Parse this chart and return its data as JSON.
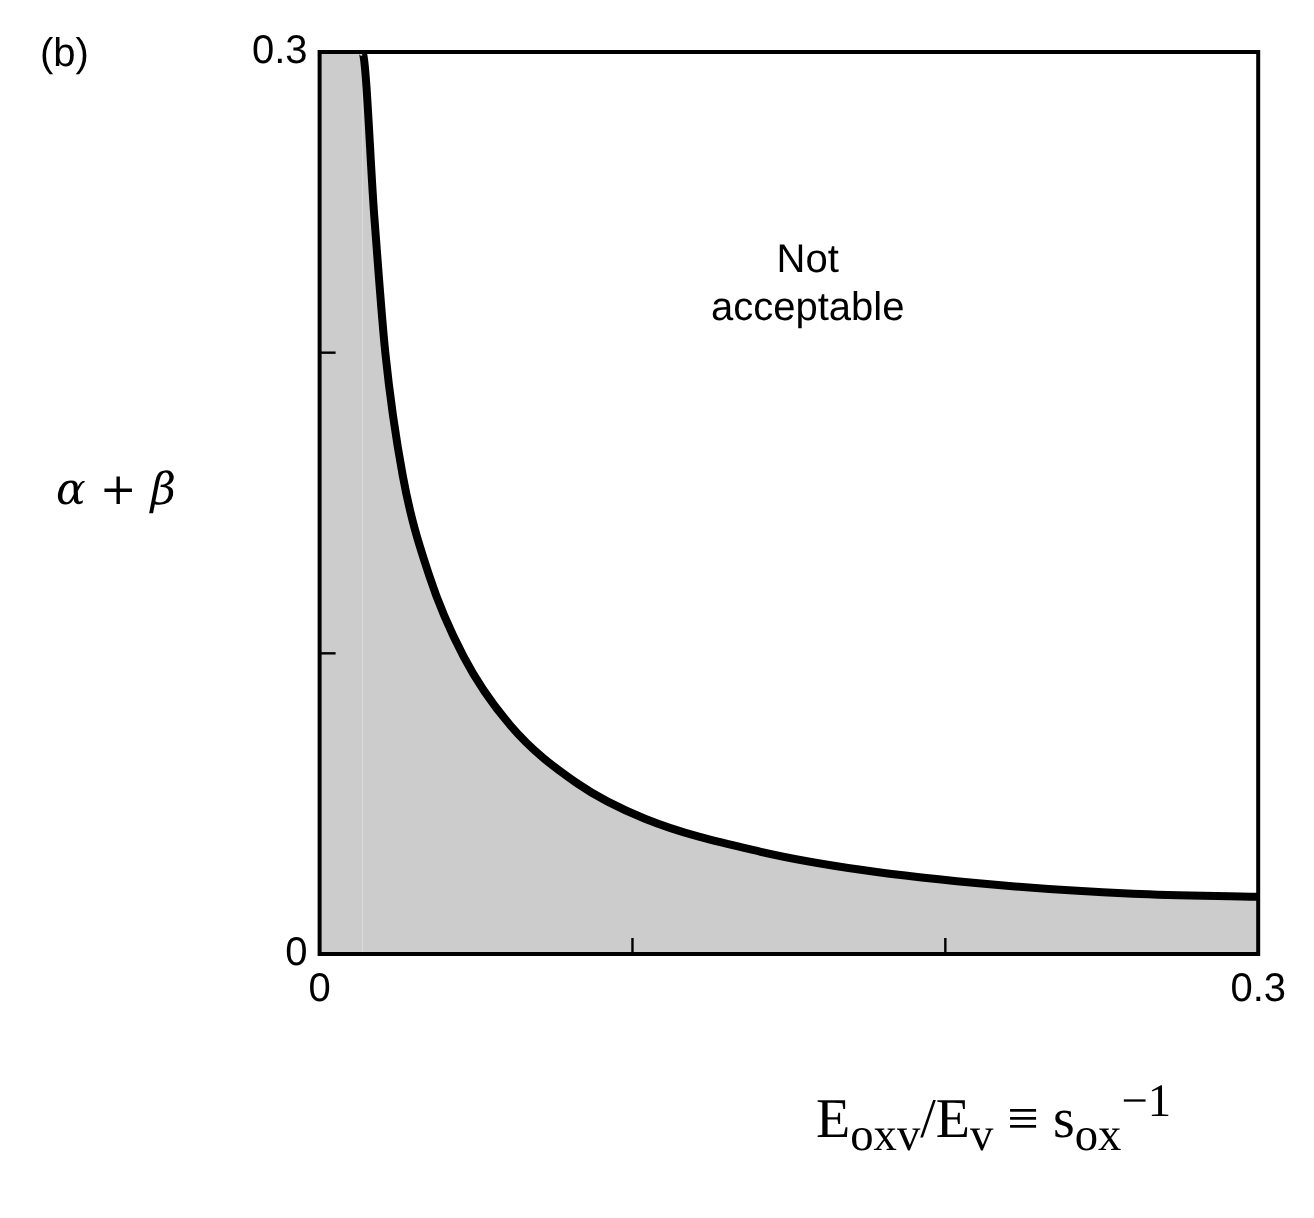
{
  "chart_data": {
    "type": "area",
    "xlabel": "E$_{oxv}$/E$_{v}$ ≡ s$_{ox}$$^{−1}$",
    "ylabel": "α + β",
    "annotations": [
      "(b)",
      "Not acceptable"
    ],
    "x": [
      0,
      0.0136,
      0.0175,
      0.021,
      0.0266,
      0.035,
      0.046,
      0.061,
      0.082,
      0.104,
      0.141,
      0.173,
      0.216,
      0.26,
      0.3
    ],
    "series": [
      {
        "color": "#000000",
        "values": [
          0.3,
          0.3,
          0.245,
          0.2,
          0.159,
          0.126,
          0.099,
          0.076,
          0.057,
          0.045,
          0.034,
          0.028,
          0.023,
          0.02,
          0.019
        ]
      }
    ],
    "xlim": [
      0,
      0.3
    ],
    "ylim": [
      0,
      0.3
    ],
    "xticks": [
      0,
      {
        "value": 0.1,
        "label": null
      },
      {
        "value": 0.2,
        "label": null
      },
      0.3
    ],
    "yticks": [
      0,
      {
        "value": 0.1,
        "label": null
      },
      {
        "value": 0.2,
        "label": null
      },
      0.3
    ],
    "grid": false,
    "legend": false,
    "marker": "none",
    "line_style": "solid"
  }
}
